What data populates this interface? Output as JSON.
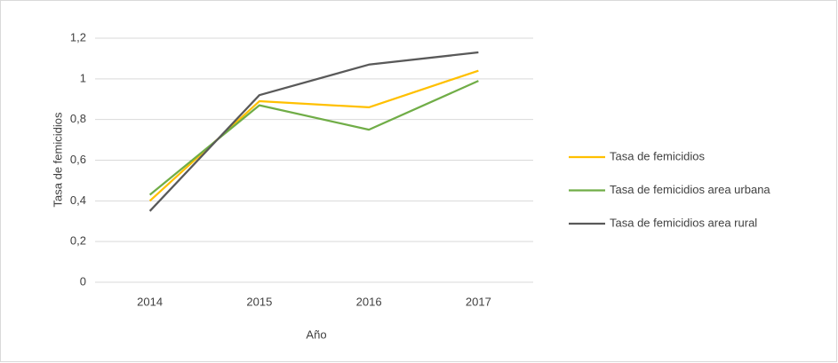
{
  "chart_data": {
    "type": "line",
    "categories": [
      "2014",
      "2015",
      "2016",
      "2017"
    ],
    "series": [
      {
        "name": "Tasa de femicidios",
        "color": "#ffc000",
        "values": [
          0.4,
          0.89,
          0.86,
          1.04
        ]
      },
      {
        "name": "Tasa de femicidios area urbana",
        "color": "#70ad47",
        "values": [
          0.43,
          0.87,
          0.75,
          0.99
        ]
      },
      {
        "name": "Tasa de femicidios area rural",
        "color": "#595959",
        "values": [
          0.35,
          0.92,
          1.07,
          1.13
        ]
      }
    ],
    "x_label": "Año",
    "y_label": "Tasa de femicidios",
    "ylim": [
      0,
      1.2
    ],
    "yticks": [
      0,
      {
        "value": 0.2,
        "label": "0,2"
      },
      {
        "value": 0.4,
        "label": "0,4"
      },
      {
        "value": 0.6,
        "label": "0,6"
      },
      {
        "value": 0.8,
        "label": "0,8"
      },
      1,
      {
        "value": 1.2,
        "label": "1,2"
      }
    ],
    "grid": true,
    "legend": "right"
  }
}
